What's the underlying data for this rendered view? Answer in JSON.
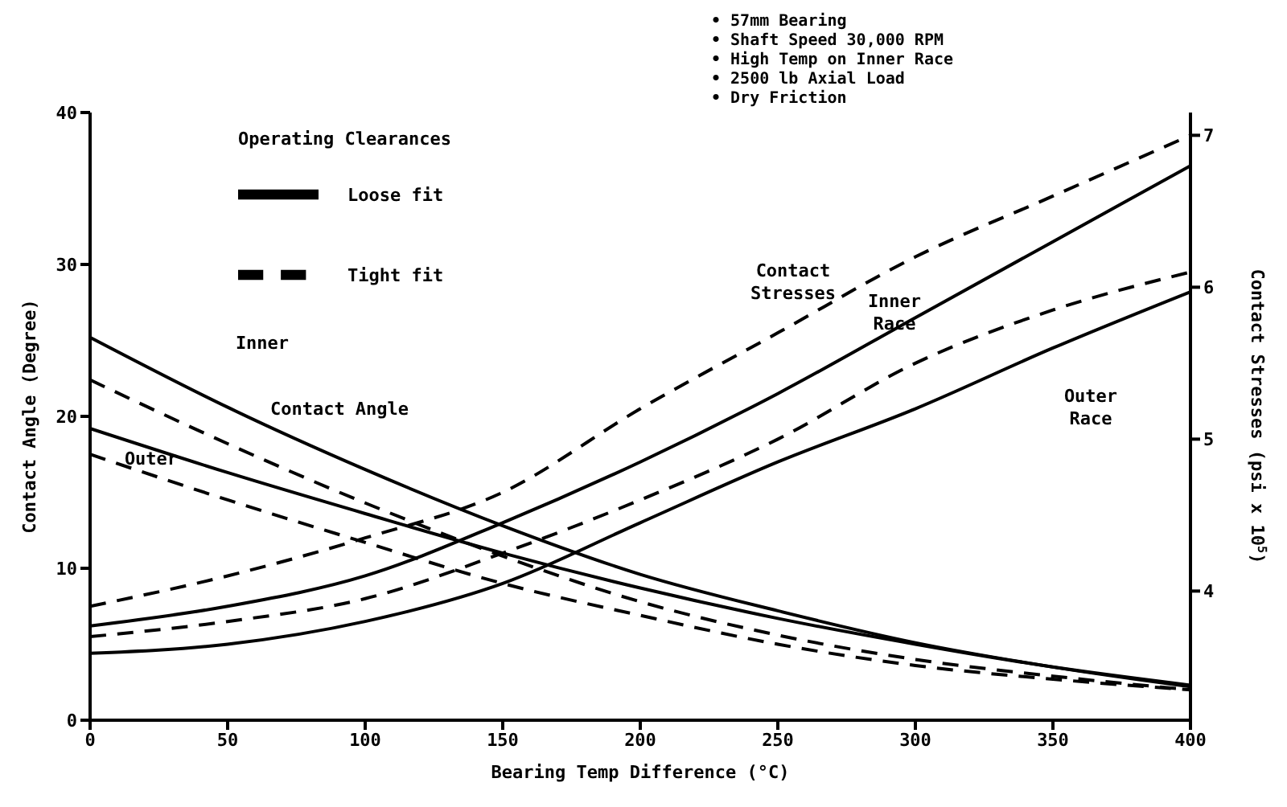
{
  "chart_data": {
    "type": "line",
    "xlabel": "Bearing Temp Difference (°C)",
    "ylabel": "Contact Angle (Degree)",
    "y2label": "Contact Stresses (psi x 10$^{5}$)",
    "legend_title": "Operating Clearances",
    "legend": "top left",
    "grid": false,
    "x": [
      0,
      50,
      100,
      150,
      200,
      250,
      300,
      350,
      400
    ],
    "xlim": [
      0,
      400
    ],
    "xticks": [
      0,
      50,
      100,
      150,
      200,
      250,
      300,
      350,
      400
    ],
    "ylim": [
      0,
      40
    ],
    "yticks": [
      0,
      10,
      20,
      30,
      40
    ],
    "y2lim": [
      3.15,
      7.15
    ],
    "y2ticks": [
      4,
      5,
      6,
      7
    ],
    "series": [
      {
        "name": "Tight fit",
        "color": "#000000",
        "line_style": "dashed",
        "values": [
          22.4,
          18.2,
          14.3,
          10.8,
          7.8,
          5.6,
          4.0,
          2.9,
          2.0
        ]
      },
      {
        "name": "Loose fit",
        "color": "#000000",
        "line_style": "solid",
        "values": [
          25.2,
          20.6,
          16.5,
          12.8,
          9.6,
          7.2,
          5.1,
          3.5,
          2.2
        ]
      },
      {
        "color": "#000000",
        "line_style": "dashed",
        "values": [
          17.5,
          14.5,
          11.7,
          9.0,
          6.9,
          5.0,
          3.6,
          2.7,
          2.0
        ]
      },
      {
        "color": "#000000",
        "line_style": "solid",
        "values": [
          19.2,
          16.3,
          13.6,
          11.0,
          8.7,
          6.7,
          5.0,
          3.5,
          2.3
        ]
      },
      {
        "color": "#000000",
        "line_style": "dashed",
        "axis": "y2",
        "values": [
          3.9,
          4.1,
          4.35,
          4.65,
          5.2,
          5.7,
          6.2,
          6.6,
          7.0
        ]
      },
      {
        "color": "#000000",
        "line_style": "solid",
        "axis": "y2",
        "values": [
          3.77,
          3.9,
          4.1,
          4.45,
          4.85,
          5.3,
          5.8,
          6.3,
          6.8
        ]
      },
      {
        "color": "#000000",
        "line_style": "dashed",
        "axis": "y2",
        "values": [
          3.7,
          3.8,
          3.95,
          4.25,
          4.6,
          5.0,
          5.5,
          5.85,
          6.1
        ]
      },
      {
        "color": "#000000",
        "line_style": "solid",
        "axis": "y2",
        "values": [
          3.59,
          3.65,
          3.8,
          4.05,
          4.45,
          4.85,
          5.2,
          5.6,
          5.97
        ]
      }
    ],
    "annotations": [
      "Inner",
      "Contact Angle",
      "Outer",
      "Contact Stresses",
      "Inner Race",
      "Outer Race",
      "• 57mm Bearing",
      "• Shaft Speed 30,000 RPM",
      "• High Temp on Inner Race",
      "• 2500 lb Axial Load",
      "• Dry Friction"
    ]
  }
}
